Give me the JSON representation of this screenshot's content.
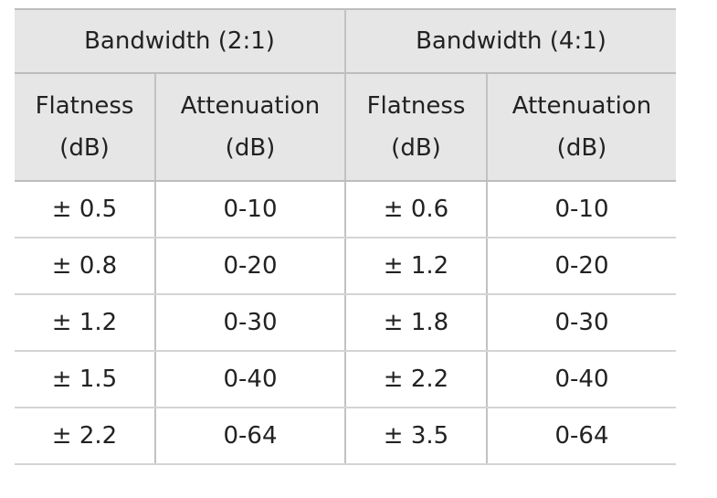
{
  "table": {
    "group_headers": [
      "Bandwidth (2:1)",
      "Bandwidth (4:1)"
    ],
    "sub_headers": [
      {
        "line1": "Flatness",
        "line2": "(dB)"
      },
      {
        "line1": "Attenuation",
        "line2": "(dB)"
      },
      {
        "line1": "Flatness",
        "line2": "(dB)"
      },
      {
        "line1": "Attenuation",
        "line2": "(dB)"
      }
    ],
    "rows": [
      [
        "± 0.5",
        "0-10",
        "± 0.6",
        "0-10"
      ],
      [
        "± 0.8",
        "0-20",
        "± 1.2",
        "0-20"
      ],
      [
        "± 1.2",
        "0-30",
        "± 1.8",
        "0-30"
      ],
      [
        "± 1.5",
        "0-40",
        "± 2.2",
        "0-40"
      ],
      [
        "± 2.2",
        "0-64",
        "± 3.5",
        "0-64"
      ]
    ]
  }
}
